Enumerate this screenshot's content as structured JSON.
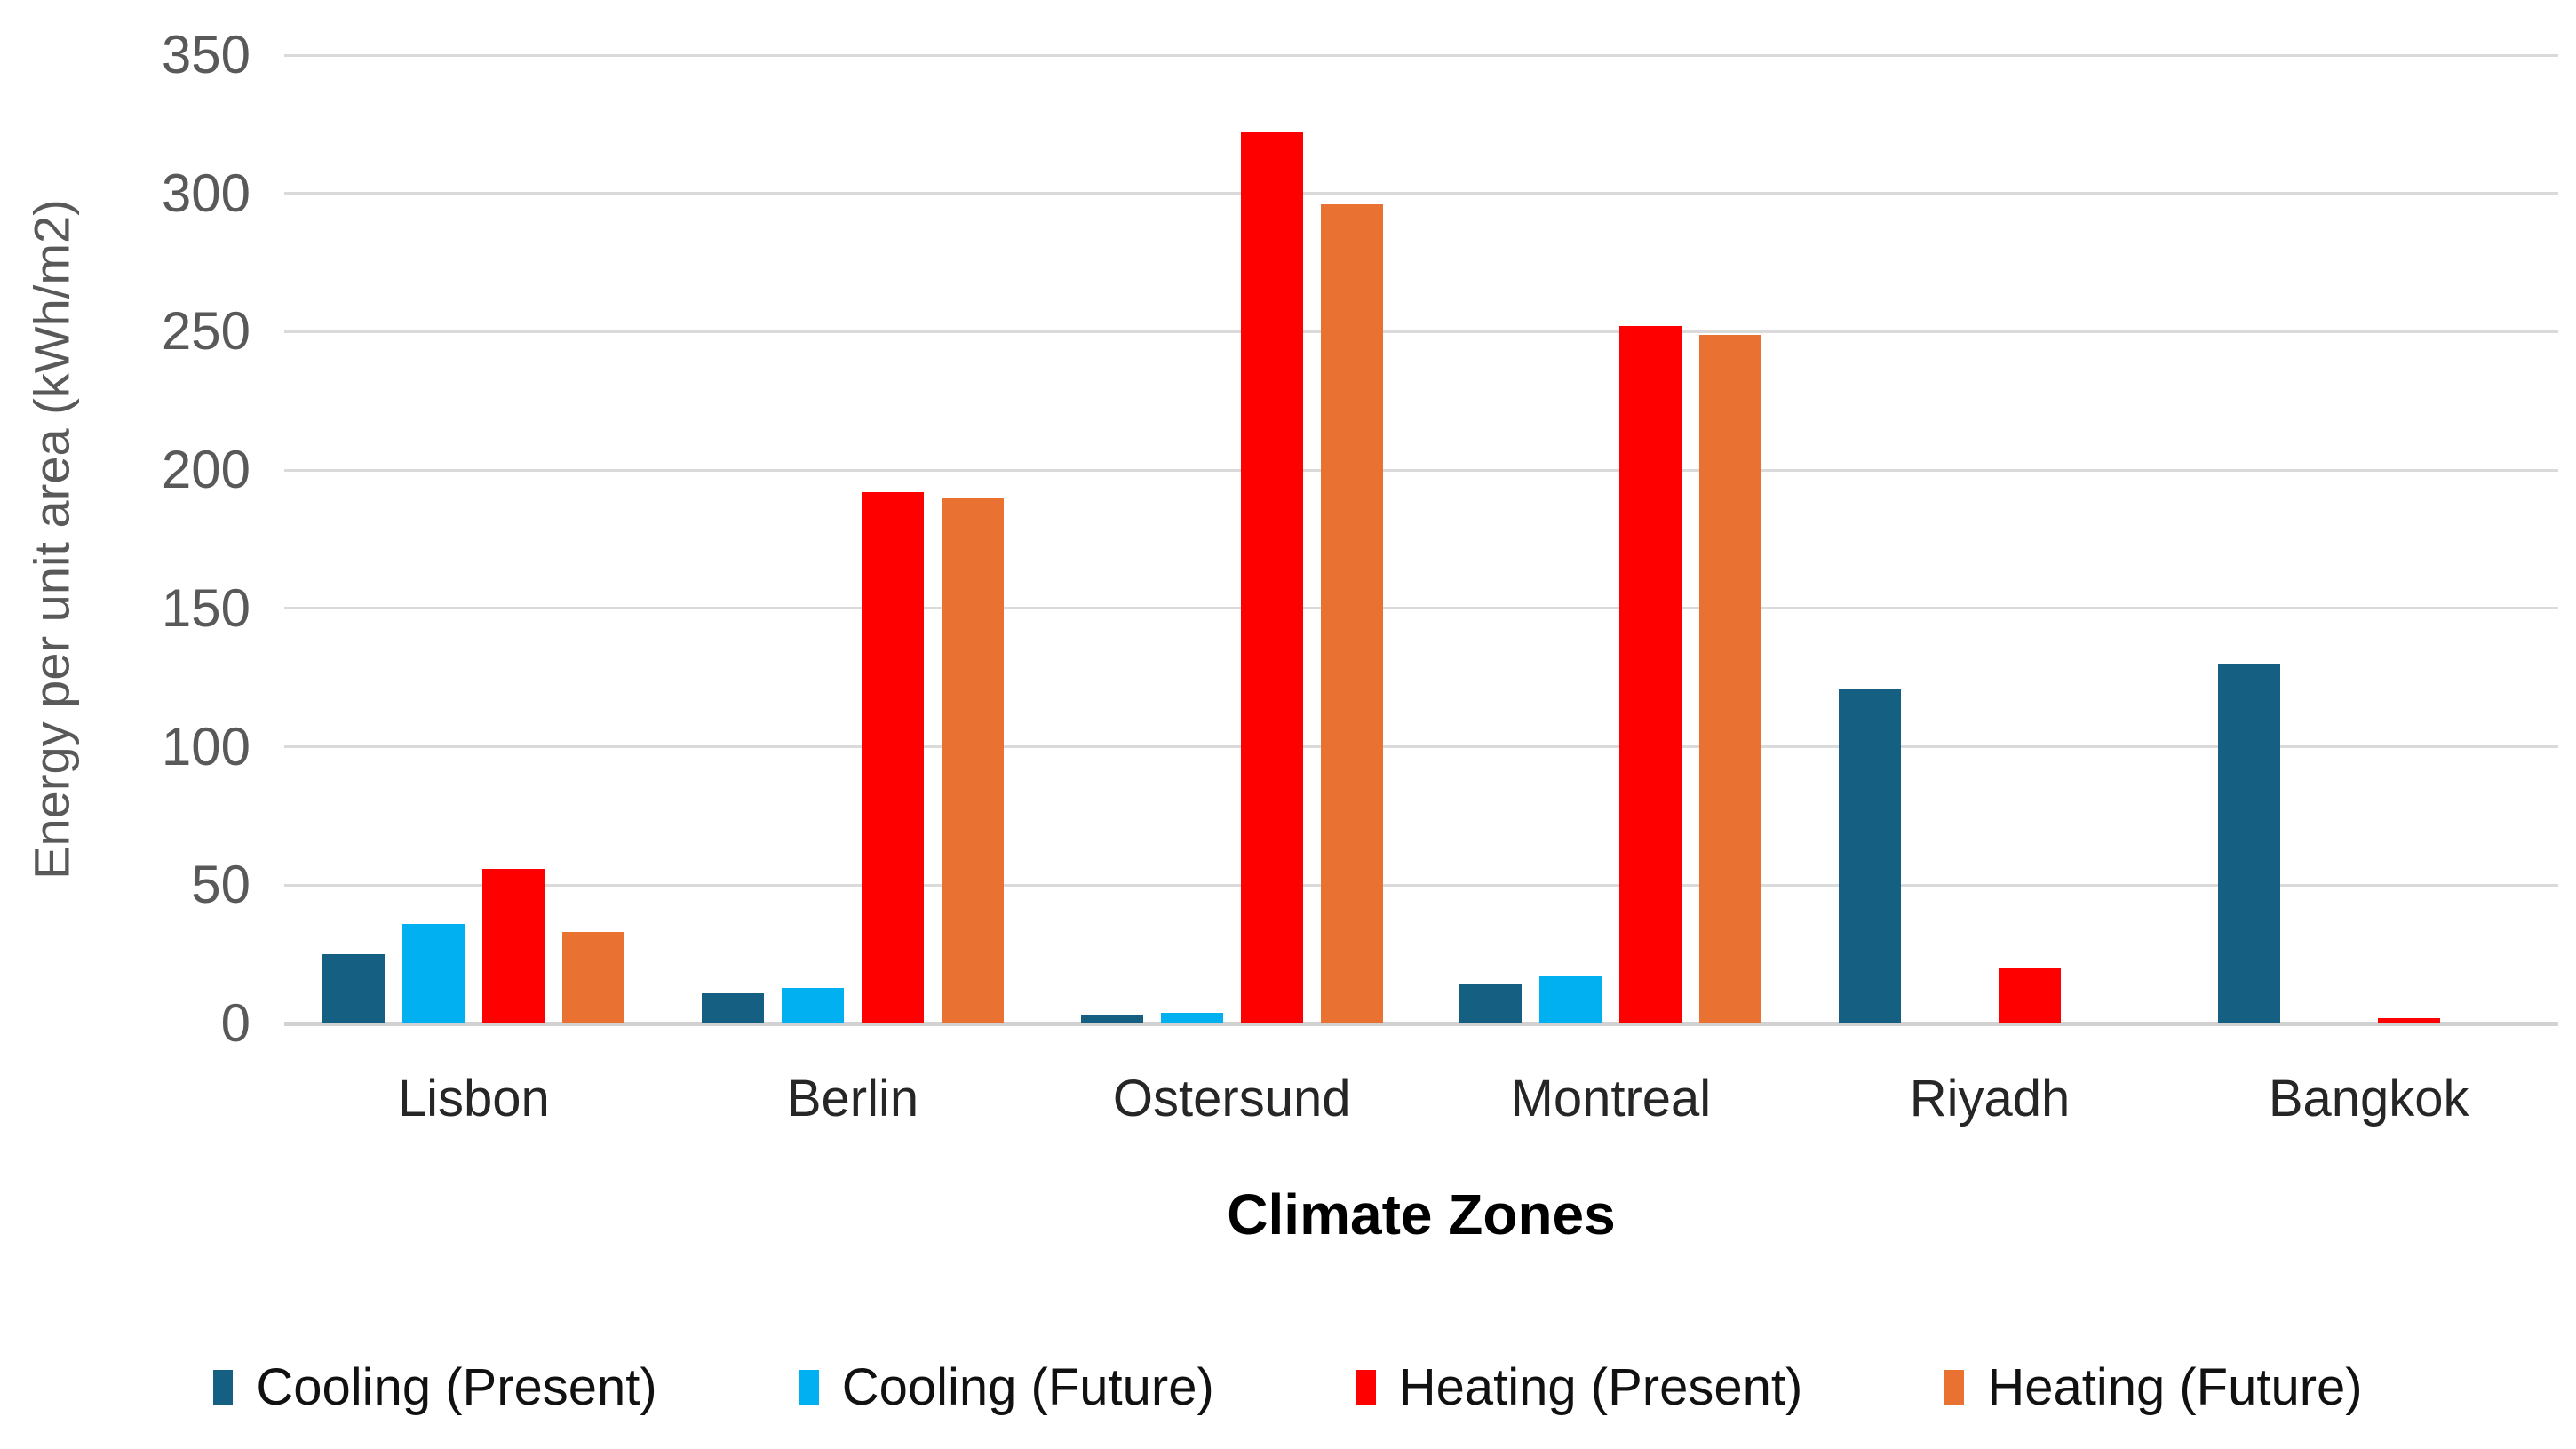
{
  "chart_data": {
    "type": "bar",
    "title": "",
    "categories": [
      "Lisbon",
      "Berlin",
      "Ostersund",
      "Montreal",
      "Riyadh",
      "Bangkok"
    ],
    "series": [
      {
        "name": "Cooling (Present)",
        "color": "#156082",
        "values": [
          25,
          11,
          3,
          14,
          121,
          130
        ]
      },
      {
        "name": "Cooling (Future)",
        "color": "#00B0F0",
        "values": [
          36,
          13,
          4,
          17,
          0,
          0
        ]
      },
      {
        "name": "Heating (Present)",
        "color": "#FF0000",
        "values": [
          56,
          192,
          322,
          252,
          20,
          2
        ]
      },
      {
        "name": "Heating (Future)",
        "color": "#E97132",
        "values": [
          33,
          190,
          296,
          249,
          0,
          0
        ]
      }
    ],
    "xlabel": "Climate Zones",
    "ylabel": "Energy per unit area (kWh/m2)",
    "ylim": [
      0,
      350
    ],
    "ytick_step": 50,
    "ytick_labels": [
      "0",
      "50",
      "100",
      "150",
      "200",
      "250",
      "300",
      "350"
    ],
    "grid": true,
    "legend_position": "bottom",
    "gridline_color": "#DADADA",
    "axis_text_color": "#595959",
    "category_text_color": "#262626"
  }
}
